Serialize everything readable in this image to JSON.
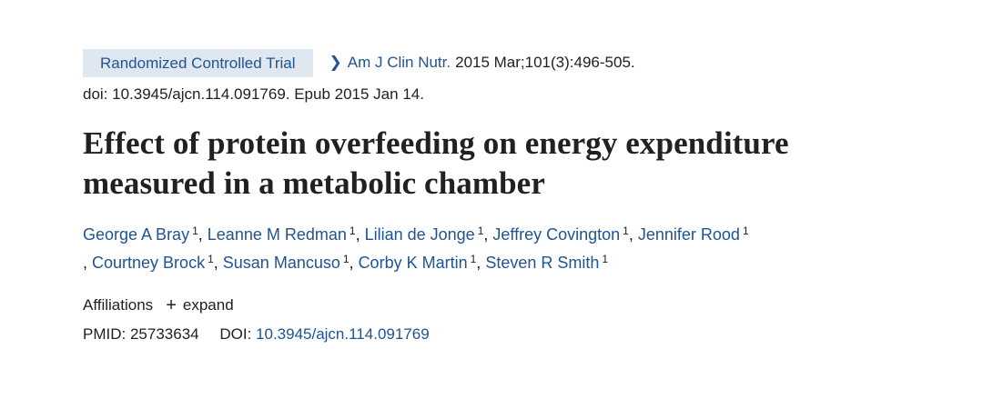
{
  "article": {
    "type_badge": "Randomized Controlled Trial",
    "journal": "Am J Clin Nutr.",
    "citation": "2015 Mar;101(3):496-505.",
    "doi_line": "doi: 10.3945/ajcn.114.091769. Epub 2015 Jan 14.",
    "title_line1": "Effect of protein overfeeding on energy expenditure",
    "title_line2": "measured in a metabolic chamber"
  },
  "authors": [
    {
      "name": "George A Bray",
      "aff": "1"
    },
    {
      "name": "Leanne M Redman",
      "aff": "1"
    },
    {
      "name": "Lilian de Jonge",
      "aff": "1"
    },
    {
      "name": "Jeffrey Covington",
      "aff": "1"
    },
    {
      "name": "Jennifer Rood",
      "aff": "1"
    },
    {
      "name": "Courtney Brock",
      "aff": "1"
    },
    {
      "name": "Susan Mancuso",
      "aff": "1"
    },
    {
      "name": "Corby K Martin",
      "aff": "1"
    },
    {
      "name": "Steven R Smith",
      "aff": "1"
    }
  ],
  "affiliations": {
    "label": "Affiliations",
    "expand_label": "expand"
  },
  "identifiers": {
    "pmid_label": "PMID:",
    "pmid": "25733634",
    "doi_label": "DOI:",
    "doi": "10.3945/ajcn.114.091769"
  },
  "colors": {
    "link": "#205493",
    "badge_bg": "#dfe7f1",
    "text": "#212121"
  },
  "icons": {
    "chevron": "chevron-right-icon",
    "plus": "plus-icon"
  }
}
